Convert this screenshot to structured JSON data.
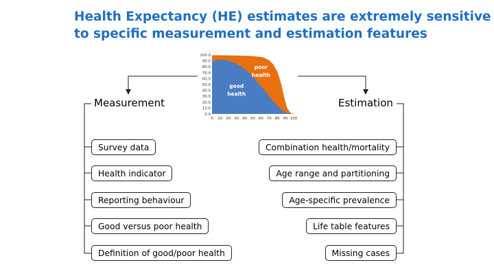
{
  "title": {
    "line1": "Health Expectancy (HE) estimates are extremely sensitive",
    "line2": "to specific measurement and estimation features"
  },
  "colors": {
    "title": "#1f6fc0",
    "good_health": "#4a7cc4",
    "poor_health": "#e8700f"
  },
  "chart_data": {
    "type": "area",
    "y_ticks": [
      "100.0",
      "90.0",
      "80.0",
      "70.0",
      "60.0",
      "50.0",
      "40.0",
      "30.0",
      "20.0",
      "10.0",
      "0.0"
    ],
    "x_ticks": [
      "0",
      "10",
      "20",
      "30",
      "40",
      "50",
      "60",
      "70",
      "80",
      "90",
      "100"
    ],
    "ylim": [
      0,
      100
    ],
    "xlim": [
      0,
      100
    ],
    "series": [
      {
        "name": "poor health",
        "x": [
          0,
          10,
          20,
          30,
          40,
          50,
          60,
          65,
          70,
          75,
          80,
          85,
          88,
          92,
          96,
          100
        ],
        "y": [
          99.5,
          99.4,
          99.2,
          99,
          98.6,
          98,
          96.5,
          94.5,
          91,
          84,
          72,
          50,
          30,
          10,
          2,
          0
        ]
      },
      {
        "name": "good health",
        "x": [
          0,
          5,
          10,
          15,
          20,
          25,
          30,
          35,
          40,
          45,
          50,
          55,
          60,
          65,
          70,
          75,
          80,
          85,
          88,
          92,
          96,
          100
        ],
        "y": [
          89,
          91,
          92,
          91.5,
          90,
          88,
          85,
          81,
          76,
          70,
          63,
          55,
          47,
          39,
          30,
          21,
          14,
          7,
          4,
          1.5,
          0.5,
          0
        ]
      }
    ],
    "labels": {
      "good_line1": "good",
      "good_line2": "health",
      "poor_line1": "poor",
      "poor_line2": "health"
    }
  },
  "measurement": {
    "heading": "Measurement",
    "items": [
      "Survey data",
      "Health indicator",
      "Reporting behaviour",
      "Good versus poor health",
      "Definition of good/poor health"
    ]
  },
  "estimation": {
    "heading": "Estimation",
    "items": [
      "Combination health/mortality",
      "Age range and partitioning",
      "Age-specific prevalence",
      "Life table features",
      "Missing cases"
    ]
  }
}
